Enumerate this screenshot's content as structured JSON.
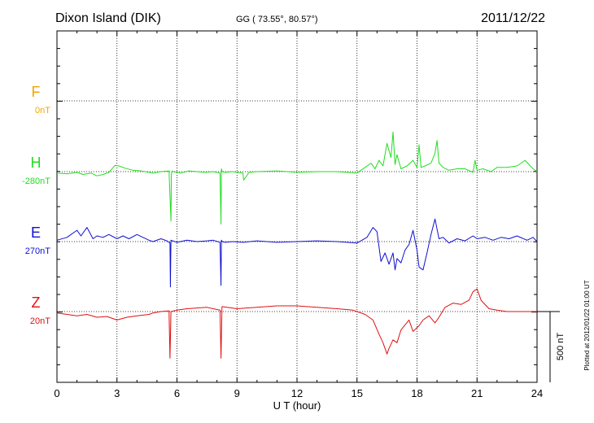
{
  "chart_data": {
    "type": "line",
    "title": "Dixon Island (DIK)",
    "coords": "GG ( 73.55°,  80.57°)",
    "date": "2011/12/22",
    "xlabel": "U T (hour)",
    "xlim": [
      0,
      24
    ],
    "xticks": [
      "0",
      "3",
      "6",
      "9",
      "12",
      "15",
      "18",
      "21",
      "24"
    ],
    "grid": true,
    "scale_label": "500 nT",
    "footnote": "Plotted at 2012/01/22 01:00 UT",
    "colors": {
      "F": "#f5a500",
      "H": "#22dd22",
      "E": "#1010d0",
      "Z": "#e01010"
    },
    "series": [
      {
        "name": "F",
        "baseline_label": "0nT",
        "x": [],
        "y": []
      },
      {
        "name": "H",
        "baseline_label": "-280nT",
        "x": [
          0,
          0.5,
          1,
          1.3,
          1.7,
          2,
          2.3,
          2.6,
          2.9,
          3.1,
          3.4,
          3.8,
          4.2,
          4.6,
          4.8,
          5.2,
          5.6,
          5.7,
          5.72,
          5.75,
          5.8,
          6.2,
          6.6,
          7,
          7.4,
          7.8,
          8.15,
          8.2,
          8.22,
          8.26,
          8.4,
          8.8,
          9,
          9.3,
          9.33,
          9.6,
          10,
          11,
          12,
          13,
          14,
          15,
          15.4,
          15.7,
          15.9,
          16.1,
          16.3,
          16.5,
          16.7,
          16.8,
          16.9,
          17,
          17.2,
          17.5,
          17.8,
          18,
          18.1,
          18.2,
          18.4,
          18.7,
          18.9,
          19,
          19.1,
          19.3,
          19.6,
          20,
          20.4,
          20.8,
          20.9,
          21,
          21.3,
          21.7,
          22,
          22.5,
          23,
          23.4,
          23.8,
          24
        ],
        "y": [
          -10,
          -15,
          -5,
          -20,
          -10,
          -30,
          -20,
          -5,
          45,
          40,
          25,
          10,
          5,
          -5,
          -10,
          0,
          5,
          -350,
          -20,
          5,
          0,
          -10,
          5,
          0,
          -5,
          0,
          -10,
          -370,
          20,
          0,
          -5,
          0,
          -5,
          -10,
          -60,
          -5,
          0,
          5,
          -5,
          0,
          0,
          -10,
          30,
          60,
          20,
          80,
          40,
          200,
          100,
          280,
          50,
          120,
          20,
          40,
          80,
          30,
          190,
          30,
          40,
          60,
          130,
          220,
          60,
          30,
          10,
          20,
          20,
          -5,
          80,
          10,
          20,
          0,
          30,
          30,
          40,
          80,
          20,
          0
        ]
      },
      {
        "name": "E",
        "baseline_label": "270nT",
        "x": [
          0,
          0.5,
          1,
          1.2,
          1.5,
          1.8,
          2,
          2.3,
          2.6,
          3,
          3.3,
          3.6,
          4,
          4.3,
          4.6,
          4.8,
          5.2,
          5.5,
          5.65,
          5.67,
          5.7,
          6,
          6.5,
          7,
          7.5,
          7.8,
          8.15,
          8.2,
          8.22,
          8.26,
          8.4,
          8.8,
          9.3,
          10,
          11,
          12,
          13,
          14,
          15,
          15.5,
          15.8,
          16,
          16.2,
          16.4,
          16.6,
          16.8,
          16.9,
          17,
          17.2,
          17.4,
          17.6,
          17.8,
          18,
          18.1,
          18.3,
          18.5,
          18.7,
          18.9,
          19.1,
          19.3,
          19.6,
          20,
          20.4,
          20.8,
          21,
          21.4,
          21.8,
          22.2,
          22.6,
          23,
          23.5,
          23.8,
          24
        ],
        "y": [
          10,
          30,
          80,
          40,
          100,
          20,
          40,
          30,
          50,
          20,
          40,
          20,
          50,
          30,
          10,
          0,
          20,
          5,
          -10,
          -320,
          10,
          -5,
          10,
          0,
          5,
          10,
          -5,
          -310,
          10,
          0,
          -5,
          0,
          -5,
          5,
          -5,
          0,
          5,
          0,
          -10,
          30,
          100,
          70,
          -140,
          -80,
          -160,
          -80,
          -200,
          -120,
          -150,
          -60,
          -20,
          80,
          -60,
          -180,
          -200,
          -80,
          50,
          160,
          20,
          30,
          -10,
          20,
          5,
          40,
          20,
          30,
          10,
          30,
          20,
          40,
          10,
          30,
          0
        ]
      },
      {
        "name": "Z",
        "baseline_label": "20nT",
        "x": [
          0,
          0.5,
          1,
          1.5,
          2,
          2.5,
          3,
          3.5,
          4,
          4.6,
          4.8,
          5.2,
          5.6,
          5.65,
          5.7,
          6,
          6.5,
          7,
          7.5,
          7.8,
          8.15,
          8.2,
          8.25,
          9,
          10,
          11,
          12,
          13,
          14,
          14.8,
          15.4,
          15.8,
          16.1,
          16.3,
          16.5,
          16.6,
          16.8,
          17,
          17.2,
          17.6,
          17.8,
          18.1,
          18.3,
          18.6,
          18.9,
          19.1,
          19.4,
          19.8,
          20.2,
          20.6,
          20.8,
          21,
          21.2,
          21.6,
          22,
          22.5,
          23,
          23.5,
          24
        ],
        "y": [
          -10,
          -20,
          -30,
          -20,
          -40,
          -35,
          -60,
          -40,
          -30,
          -20,
          -10,
          0,
          5,
          -330,
          0,
          10,
          20,
          25,
          30,
          20,
          10,
          -330,
          35,
          20,
          30,
          40,
          40,
          30,
          20,
          10,
          -20,
          -60,
          -160,
          -220,
          -300,
          -260,
          -200,
          -220,
          -130,
          -60,
          -140,
          -100,
          -60,
          -30,
          -80,
          -40,
          30,
          60,
          50,
          80,
          140,
          160,
          80,
          20,
          10,
          0,
          0,
          0,
          0
        ]
      }
    ]
  }
}
